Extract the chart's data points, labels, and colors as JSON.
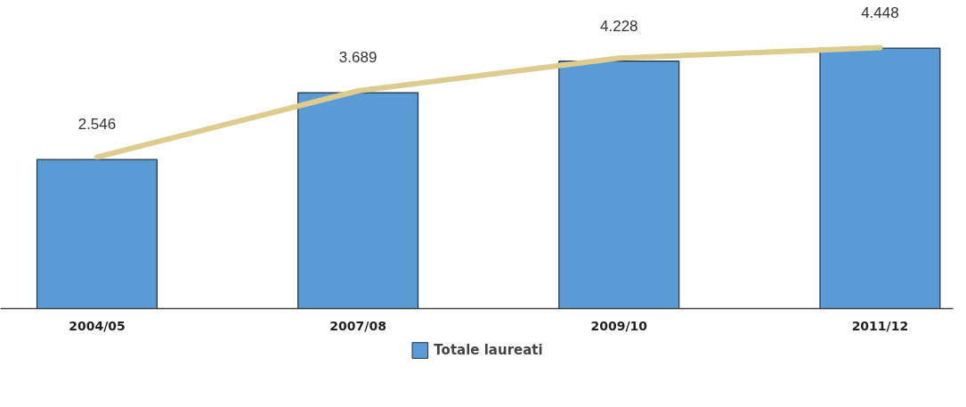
{
  "chart_data": {
    "type": "bar",
    "categories": [
      "2004/05",
      "2007/08",
      "2009/10",
      "2011/12"
    ],
    "series": [
      {
        "name": "Totale laureati",
        "color": "#5b9bd5",
        "values": [
          2546,
          3689,
          4228,
          4448
        ],
        "value_labels": [
          "2.546",
          "3.689",
          "4.228",
          "4.448"
        ]
      },
      {
        "type": "line",
        "color": "#ddcc8e",
        "values": [
          2590,
          3720,
          4280,
          4460
        ]
      }
    ],
    "legend": "bottom"
  }
}
